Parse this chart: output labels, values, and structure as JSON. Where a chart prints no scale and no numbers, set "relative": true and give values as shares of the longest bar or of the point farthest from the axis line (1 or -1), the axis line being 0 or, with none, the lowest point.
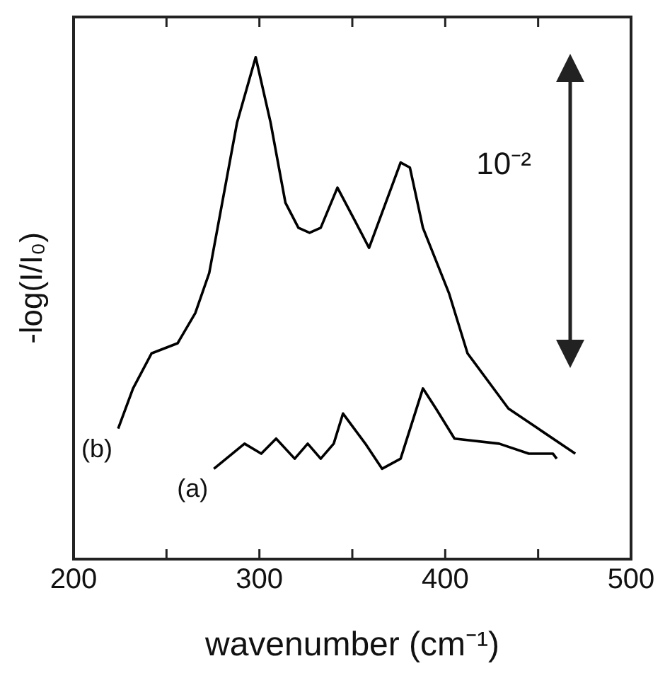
{
  "chart_data": {
    "type": "line",
    "relative": true,
    "xlabel": "wavenumber (cm⁻¹)",
    "ylabel": "-log(I/I₀)",
    "xlim": [
      200,
      500
    ],
    "xticks": [
      200,
      {
        "value": 250,
        "label": null
      },
      300,
      {
        "value": 350,
        "label": null
      },
      400,
      {
        "value": 450,
        "label": null
      },
      500
    ],
    "tick_labels": "x",
    "grid": false,
    "legend": false,
    "marker": "none",
    "line_style": "solid",
    "annotations": [
      "10⁻²"
    ],
    "series": [
      {
        "name": "(a)",
        "color": "#000000",
        "x": [
          275.5,
          292,
          301,
          309,
          319,
          326,
          333,
          340,
          345,
          357,
          366,
          376,
          388,
          395,
          405,
          429,
          445,
          458,
          460
        ],
        "values": [
          0.18,
          0.23,
          0.21,
          0.24,
          0.2,
          0.23,
          0.2,
          0.23,
          0.29,
          0.23,
          0.18,
          0.2,
          0.34,
          0.3,
          0.24,
          0.23,
          0.21,
          0.21,
          0.2
        ]
      },
      {
        "name": "(b)",
        "color": "#000000",
        "x": [
          224,
          232,
          242,
          256,
          265.5,
          273,
          280,
          288,
          298,
          306,
          314,
          321,
          327,
          333,
          342,
          352,
          359,
          366,
          376,
          381,
          388,
          402,
          412,
          434,
          450,
          470
        ],
        "values": [
          0.26,
          0.34,
          0.41,
          0.43,
          0.49,
          0.57,
          0.71,
          0.87,
          1,
          0.87,
          0.71,
          0.66,
          0.65,
          0.66,
          0.74,
          0.67,
          0.62,
          0.69,
          0.79,
          0.78,
          0.66,
          0.53,
          0.41,
          0.3,
          0.26,
          0.21
        ]
      }
    ]
  }
}
